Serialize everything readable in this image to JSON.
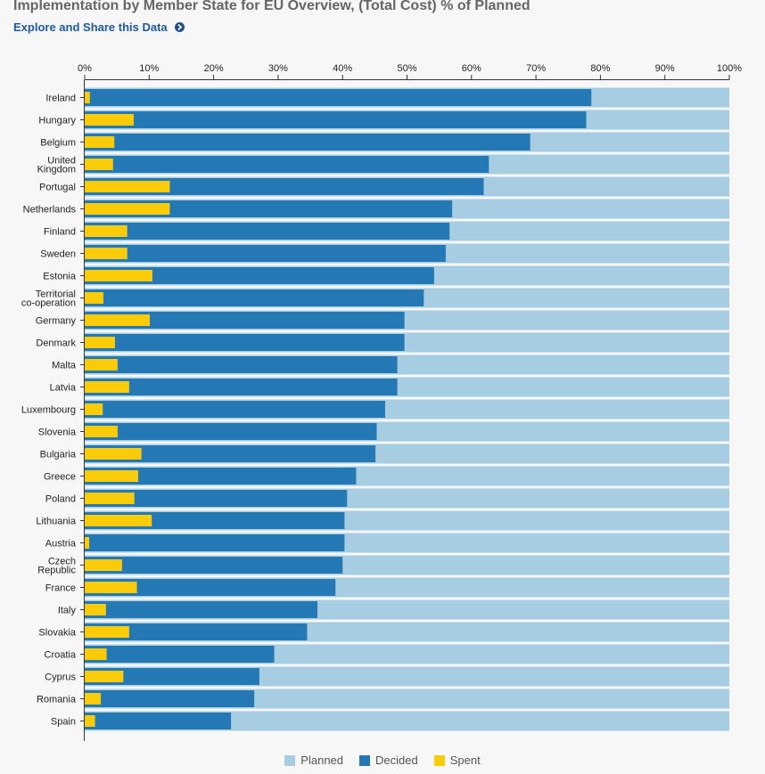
{
  "header": {
    "title": "Implementation by Member State for EU Overview, (Total Cost) % of Planned",
    "explore_link": "Explore and Share this Data"
  },
  "colors": {
    "planned": "#a6cde2",
    "decided": "#2478b4",
    "spent": "#f9cb08",
    "axis": "#333333"
  },
  "chart_data": {
    "type": "bar",
    "orientation": "horizontal",
    "title": "Implementation by Member State for EU Overview, (Total Cost) % of Planned",
    "xlabel": "",
    "ylabel": "",
    "xlim": [
      0,
      100
    ],
    "x_ticks": [
      "0%",
      "10%",
      "20%",
      "30%",
      "40%",
      "50%",
      "60%",
      "70%",
      "80%",
      "90%",
      "100%"
    ],
    "grid": false,
    "legend_position": "bottom",
    "categories": [
      "Ireland",
      "Hungary",
      "Belgium",
      "United Kingdom",
      "Portugal",
      "Netherlands",
      "Finland",
      "Sweden",
      "Estonia",
      "Territorial co-operation",
      "Germany",
      "Denmark",
      "Malta",
      "Latvia",
      "Luxembourg",
      "Slovenia",
      "Bulgaria",
      "Greece",
      "Poland",
      "Lithuania",
      "Austria",
      "Czech Republic",
      "France",
      "Italy",
      "Slovakia",
      "Croatia",
      "Cyprus",
      "Romania",
      "Spain"
    ],
    "category_lines": [
      [
        "Ireland"
      ],
      [
        "Hungary"
      ],
      [
        "Belgium"
      ],
      [
        "United",
        "Kingdom"
      ],
      [
        "Portugal"
      ],
      [
        "Netherlands"
      ],
      [
        "Finland"
      ],
      [
        "Sweden"
      ],
      [
        "Estonia"
      ],
      [
        "Territorial",
        "co-operation"
      ],
      [
        "Germany"
      ],
      [
        "Denmark"
      ],
      [
        "Malta"
      ],
      [
        "Latvia"
      ],
      [
        "Luxembourg"
      ],
      [
        "Slovenia"
      ],
      [
        "Bulgaria"
      ],
      [
        "Greece"
      ],
      [
        "Poland"
      ],
      [
        "Lithuania"
      ],
      [
        "Austria"
      ],
      [
        "Czech",
        "Republic"
      ],
      [
        "France"
      ],
      [
        "Italy"
      ],
      [
        "Slovakia"
      ],
      [
        "Croatia"
      ],
      [
        "Cyprus"
      ],
      [
        "Romania"
      ],
      [
        "Spain"
      ]
    ],
    "series": [
      {
        "name": "Planned",
        "values": [
          100,
          100,
          100,
          100,
          100,
          100,
          100,
          100,
          100,
          100,
          100,
          100,
          100,
          100,
          100,
          100,
          100,
          100,
          100,
          100,
          100,
          100,
          100,
          100,
          100,
          100,
          100,
          100,
          100
        ]
      },
      {
        "name": "Decided",
        "values": [
          78.6,
          77.8,
          69.1,
          62.7,
          61.9,
          57.0,
          56.6,
          56.0,
          54.2,
          52.6,
          49.6,
          49.6,
          48.5,
          48.5,
          46.6,
          45.3,
          45.1,
          42.1,
          40.7,
          40.3,
          40.3,
          40.0,
          38.9,
          36.1,
          34.5,
          29.4,
          27.1,
          26.3,
          22.7
        ]
      },
      {
        "name": "Spent",
        "values": [
          0.8,
          7.6,
          4.6,
          4.4,
          13.2,
          13.2,
          6.6,
          6.6,
          10.5,
          2.9,
          10.1,
          4.7,
          5.1,
          6.9,
          2.8,
          5.1,
          8.8,
          8.3,
          7.7,
          10.4,
          0.7,
          5.8,
          8.1,
          3.3,
          6.9,
          3.4,
          6.0,
          2.5,
          1.6
        ]
      }
    ]
  }
}
